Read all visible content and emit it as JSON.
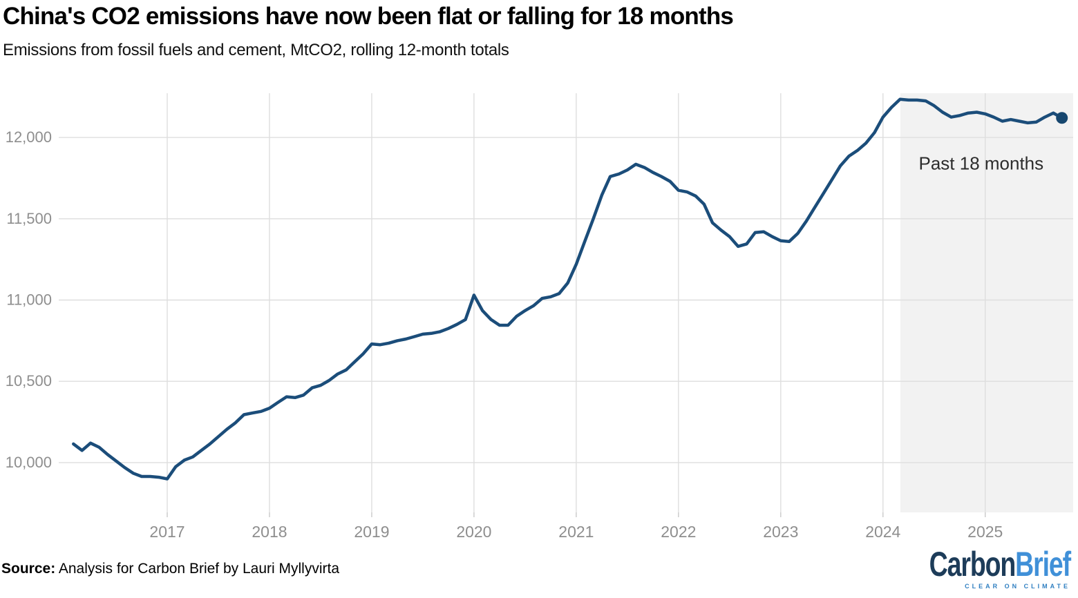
{
  "header": {
    "title": "China's CO2 emissions have now been flat or falling for 18 months",
    "subtitle": "Emissions from fossil fuels and cement, MtCO2, rolling 12-month totals"
  },
  "footer": {
    "source_label": "Source:",
    "source_text": " Analysis for Carbon Brief by Lauri Myllyvirta",
    "logo": {
      "part1": "Carbon",
      "part2": "Brief",
      "tagline": "CLEAR ON CLIMATE"
    }
  },
  "colors": {
    "line": "#1b4d7a",
    "end_dot": "#17476f",
    "gridline": "#dedede",
    "tick": "#c9c9c9",
    "axis_text": "#8e8e8e",
    "annotation_text": "#2d2d2d",
    "highlight_fill": "#f2f2f2",
    "background": "#ffffff"
  },
  "chart_data": {
    "type": "line",
    "title": "China's CO2 emissions have now been flat or falling for 18 months",
    "subtitle": "Emissions from fossil fuels and cement, MtCO2, rolling 12-month totals",
    "xlabel": "",
    "ylabel": "MtCO2, rolling 12-month totals",
    "xlim": [
      2015.939,
      2025.86
    ],
    "ylim": [
      9694,
      12272
    ],
    "grid": true,
    "legend_position": "none",
    "x_ticks": [
      {
        "value": 2017,
        "label": "2017"
      },
      {
        "value": 2018,
        "label": "2018"
      },
      {
        "value": 2019,
        "label": "2019"
      },
      {
        "value": 2020,
        "label": "2020"
      },
      {
        "value": 2021,
        "label": "2021"
      },
      {
        "value": 2022,
        "label": "2022"
      },
      {
        "value": 2023,
        "label": "2023"
      },
      {
        "value": 2024,
        "label": "2024"
      },
      {
        "value": 2025,
        "label": "2025"
      }
    ],
    "y_ticks": [
      {
        "value": 10000,
        "label": "10,000"
      },
      {
        "value": 10500,
        "label": "10,500"
      },
      {
        "value": 11000,
        "label": "11,000"
      },
      {
        "value": 11500,
        "label": "11,500"
      },
      {
        "value": 12000,
        "label": "12,000"
      }
    ],
    "highlight_region": {
      "x_start": 2024.17,
      "x_end": 2025.86,
      "label": "Past 18 months"
    },
    "annotation": {
      "text": "Past 18 months",
      "x": 2024.96,
      "y": 11840
    },
    "end_marker": true,
    "series": [
      {
        "name": "CO2 emissions from fossil fuels and cement (MtCO2, rolling 12-month total)",
        "points": [
          [
            2016.083,
            10115
          ],
          [
            2016.167,
            10075
          ],
          [
            2016.25,
            10120
          ],
          [
            2016.333,
            10095
          ],
          [
            2016.417,
            10050
          ],
          [
            2016.5,
            10010
          ],
          [
            2016.583,
            9970
          ],
          [
            2016.667,
            9935
          ],
          [
            2016.75,
            9915
          ],
          [
            2016.833,
            9915
          ],
          [
            2016.917,
            9910
          ],
          [
            2017.0,
            9900
          ],
          [
            2017.083,
            9975
          ],
          [
            2017.167,
            10015
          ],
          [
            2017.25,
            10035
          ],
          [
            2017.333,
            10075
          ],
          [
            2017.417,
            10115
          ],
          [
            2017.5,
            10160
          ],
          [
            2017.583,
            10205
          ],
          [
            2017.667,
            10245
          ],
          [
            2017.75,
            10295
          ],
          [
            2017.833,
            10305
          ],
          [
            2017.917,
            10315
          ],
          [
            2018.0,
            10335
          ],
          [
            2018.083,
            10370
          ],
          [
            2018.167,
            10405
          ],
          [
            2018.25,
            10400
          ],
          [
            2018.333,
            10415
          ],
          [
            2018.417,
            10460
          ],
          [
            2018.5,
            10475
          ],
          [
            2018.583,
            10505
          ],
          [
            2018.667,
            10545
          ],
          [
            2018.75,
            10570
          ],
          [
            2018.833,
            10620
          ],
          [
            2018.917,
            10670
          ],
          [
            2019.0,
            10730
          ],
          [
            2019.083,
            10725
          ],
          [
            2019.167,
            10735
          ],
          [
            2019.25,
            10750
          ],
          [
            2019.333,
            10760
          ],
          [
            2019.417,
            10775
          ],
          [
            2019.5,
            10790
          ],
          [
            2019.583,
            10795
          ],
          [
            2019.667,
            10805
          ],
          [
            2019.75,
            10825
          ],
          [
            2019.833,
            10850
          ],
          [
            2019.917,
            10880
          ],
          [
            2020.0,
            11030
          ],
          [
            2020.083,
            10935
          ],
          [
            2020.167,
            10880
          ],
          [
            2020.25,
            10845
          ],
          [
            2020.333,
            10845
          ],
          [
            2020.417,
            10900
          ],
          [
            2020.5,
            10935
          ],
          [
            2020.583,
            10965
          ],
          [
            2020.667,
            11010
          ],
          [
            2020.75,
            11020
          ],
          [
            2020.833,
            11040
          ],
          [
            2020.917,
            11105
          ],
          [
            2021.0,
            11220
          ],
          [
            2021.083,
            11360
          ],
          [
            2021.167,
            11500
          ],
          [
            2021.25,
            11645
          ],
          [
            2021.333,
            11760
          ],
          [
            2021.417,
            11775
          ],
          [
            2021.5,
            11800
          ],
          [
            2021.583,
            11835
          ],
          [
            2021.667,
            11815
          ],
          [
            2021.75,
            11785
          ],
          [
            2021.833,
            11760
          ],
          [
            2021.917,
            11730
          ],
          [
            2022.0,
            11675
          ],
          [
            2022.083,
            11665
          ],
          [
            2022.167,
            11640
          ],
          [
            2022.25,
            11590
          ],
          [
            2022.333,
            11475
          ],
          [
            2022.417,
            11430
          ],
          [
            2022.5,
            11390
          ],
          [
            2022.583,
            11330
          ],
          [
            2022.667,
            11345
          ],
          [
            2022.75,
            11415
          ],
          [
            2022.833,
            11420
          ],
          [
            2022.917,
            11390
          ],
          [
            2023.0,
            11365
          ],
          [
            2023.083,
            11360
          ],
          [
            2023.167,
            11410
          ],
          [
            2023.25,
            11485
          ],
          [
            2023.333,
            11570
          ],
          [
            2023.417,
            11655
          ],
          [
            2023.5,
            11740
          ],
          [
            2023.583,
            11825
          ],
          [
            2023.667,
            11885
          ],
          [
            2023.75,
            11920
          ],
          [
            2023.833,
            11965
          ],
          [
            2023.917,
            12030
          ],
          [
            2024.0,
            12125
          ],
          [
            2024.083,
            12185
          ],
          [
            2024.167,
            12235
          ],
          [
            2024.25,
            12230
          ],
          [
            2024.333,
            12230
          ],
          [
            2024.417,
            12225
          ],
          [
            2024.5,
            12195
          ],
          [
            2024.583,
            12155
          ],
          [
            2024.667,
            12125
          ],
          [
            2024.75,
            12135
          ],
          [
            2024.833,
            12150
          ],
          [
            2024.917,
            12155
          ],
          [
            2025.0,
            12145
          ],
          [
            2025.083,
            12125
          ],
          [
            2025.167,
            12100
          ],
          [
            2025.25,
            12110
          ],
          [
            2025.333,
            12100
          ],
          [
            2025.417,
            12090
          ],
          [
            2025.5,
            12095
          ],
          [
            2025.583,
            12125
          ],
          [
            2025.667,
            12150
          ],
          [
            2025.75,
            12120
          ]
        ]
      }
    ]
  }
}
